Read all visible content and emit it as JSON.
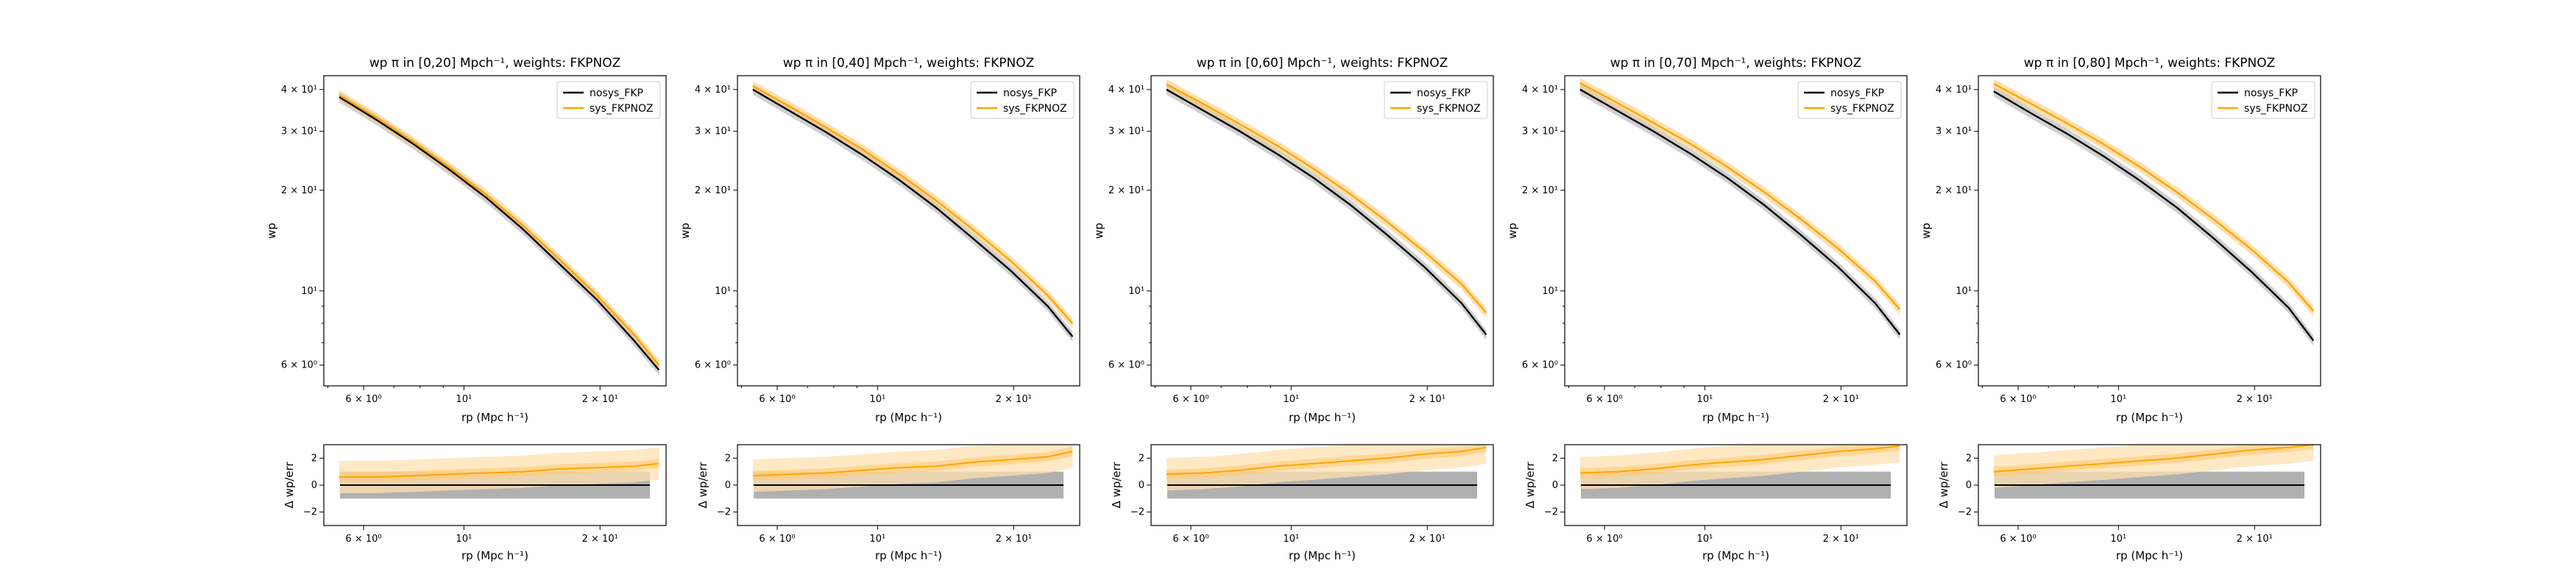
{
  "figure": {
    "background": "#ffffff"
  },
  "colors": {
    "nosys": "#000000",
    "sys": "#ffa500",
    "nosys_band": "#b0b0b0",
    "sys_band_outer": "#ffe0b0",
    "sys_band_inner": "#ffc870"
  },
  "common": {
    "x_tick_labels": [
      "6 × 10⁰",
      "10¹",
      "2 × 10¹"
    ],
    "x_tick_values": [
      6,
      10,
      20
    ],
    "top_y_tick_labels": [
      "6 × 10⁰",
      "10¹",
      "2 × 10¹",
      "3 × 10¹",
      "4 × 10¹"
    ],
    "top_y_tick_values": [
      6,
      10,
      20,
      30,
      40
    ],
    "bottom_y_tick_labels": [
      "−2",
      "0",
      "2"
    ],
    "bottom_y_tick_values": [
      -2,
      0,
      2
    ],
    "top_xlabel": "rp (Mpc h⁻¹)",
    "top_ylabel": "wp",
    "bottom_xlabel": "rp (Mpc h⁻¹)",
    "bottom_ylabel": "Δ wp/err",
    "legend": [
      "nosys_FKP",
      "sys_FKPNOZ"
    ]
  },
  "chart_data": [
    {
      "type": "line",
      "title": "wp π in [0,20] Mpch⁻¹, weights: FKPNOZ",
      "xscale": "log",
      "yscale": "log",
      "xlim": [
        4.9,
        28
      ],
      "ylim": [
        5.2,
        44
      ],
      "x": [
        5.3,
        6.4,
        7.7,
        9.3,
        11.2,
        13.5,
        16.3,
        19.7,
        23.8,
        27.0
      ],
      "series": [
        {
          "name": "nosys_FKP",
          "values": [
            38.0,
            32.5,
            27.6,
            23.0,
            19.0,
            15.3,
            12.0,
            9.4,
            7.1,
            5.8
          ]
        },
        {
          "name": "sys_FKPNOZ",
          "values": [
            38.5,
            33.0,
            28.0,
            23.4,
            19.4,
            15.7,
            12.4,
            9.7,
            7.4,
            6.0
          ]
        }
      ],
      "residual": {
        "ylim": [
          -3,
          3
        ],
        "values": [
          0.6,
          0.6,
          0.7,
          0.8,
          0.9,
          1.0,
          1.2,
          1.3,
          1.4,
          1.6
        ]
      },
      "legend_position": "upper right"
    },
    {
      "type": "line",
      "title": "wp π in [0,40] Mpch⁻¹, weights: FKPNOZ",
      "xscale": "log",
      "yscale": "log",
      "xlim": [
        4.9,
        28
      ],
      "ylim": [
        5.2,
        44
      ],
      "x": [
        5.3,
        6.4,
        7.7,
        9.3,
        11.2,
        13.5,
        16.3,
        19.7,
        23.8,
        27.0
      ],
      "series": [
        {
          "name": "nosys_FKP",
          "values": [
            40.0,
            34.5,
            29.8,
            25.4,
            21.4,
            17.7,
            14.3,
            11.5,
            9.0,
            7.3
          ]
        },
        {
          "name": "sys_FKPNOZ",
          "values": [
            41.0,
            35.6,
            30.8,
            26.4,
            22.3,
            18.6,
            15.2,
            12.3,
            9.7,
            8.0
          ]
        }
      ],
      "residual": {
        "ylim": [
          -3,
          3
        ],
        "values": [
          0.7,
          0.8,
          0.9,
          1.1,
          1.3,
          1.4,
          1.7,
          1.9,
          2.1,
          2.5
        ]
      },
      "legend_position": "upper right"
    },
    {
      "type": "line",
      "title": "wp π in [0,60] Mpch⁻¹, weights: FKPNOZ",
      "xscale": "log",
      "yscale": "log",
      "xlim": [
        4.9,
        28
      ],
      "ylim": [
        5.2,
        44
      ],
      "x": [
        5.3,
        6.4,
        7.7,
        9.3,
        11.2,
        13.5,
        16.3,
        19.7,
        23.8,
        27.0
      ],
      "series": [
        {
          "name": "nosys_FKP",
          "values": [
            40.0,
            34.6,
            30.0,
            25.7,
            21.8,
            18.1,
            14.7,
            11.8,
            9.2,
            7.4
          ]
        },
        {
          "name": "sys_FKPNOZ",
          "values": [
            41.5,
            36.2,
            31.5,
            27.2,
            23.2,
            19.5,
            16.1,
            13.1,
            10.5,
            8.6
          ]
        }
      ],
      "residual": {
        "ylim": [
          -3,
          3
        ],
        "values": [
          0.8,
          0.9,
          1.1,
          1.4,
          1.6,
          1.8,
          2.0,
          2.3,
          2.5,
          2.8
        ]
      },
      "legend_position": "upper right"
    },
    {
      "type": "line",
      "title": "wp π in [0,70] Mpch⁻¹, weights: FKPNOZ",
      "xscale": "log",
      "yscale": "log",
      "xlim": [
        4.9,
        28
      ],
      "ylim": [
        5.2,
        44
      ],
      "x": [
        5.3,
        6.4,
        7.7,
        9.3,
        11.2,
        13.5,
        16.3,
        19.7,
        23.8,
        27.0
      ],
      "series": [
        {
          "name": "nosys_FKP",
          "values": [
            40.0,
            34.6,
            30.0,
            25.7,
            21.8,
            18.1,
            14.7,
            11.8,
            9.2,
            7.4
          ]
        },
        {
          "name": "sys_FKPNOZ",
          "values": [
            41.8,
            36.5,
            31.8,
            27.5,
            23.5,
            19.8,
            16.4,
            13.4,
            10.7,
            8.8
          ]
        }
      ],
      "residual": {
        "ylim": [
          -3,
          3
        ],
        "values": [
          0.9,
          1.0,
          1.2,
          1.5,
          1.7,
          1.9,
          2.2,
          2.5,
          2.7,
          2.9
        ]
      },
      "legend_position": "upper right"
    },
    {
      "type": "line",
      "title": "wp π in [0,80] Mpch⁻¹, weights: FKPNOZ",
      "xscale": "log",
      "yscale": "log",
      "xlim": [
        4.9,
        28
      ],
      "ylim": [
        5.2,
        44
      ],
      "x": [
        5.3,
        6.4,
        7.7,
        9.3,
        11.2,
        13.5,
        16.3,
        19.7,
        23.8,
        27.0
      ],
      "series": [
        {
          "name": "nosys_FKP",
          "values": [
            39.5,
            34.0,
            29.5,
            25.2,
            21.3,
            17.7,
            14.3,
            11.4,
            8.9,
            7.1
          ]
        },
        {
          "name": "sys_FKPNOZ",
          "values": [
            41.6,
            36.3,
            31.7,
            27.4,
            23.4,
            19.7,
            16.3,
            13.3,
            10.6,
            8.7
          ]
        }
      ],
      "residual": {
        "ylim": [
          -3,
          3
        ],
        "values": [
          1.0,
          1.2,
          1.4,
          1.6,
          1.8,
          2.0,
          2.3,
          2.6,
          2.8,
          3.0
        ]
      },
      "legend_position": "upper right"
    }
  ]
}
